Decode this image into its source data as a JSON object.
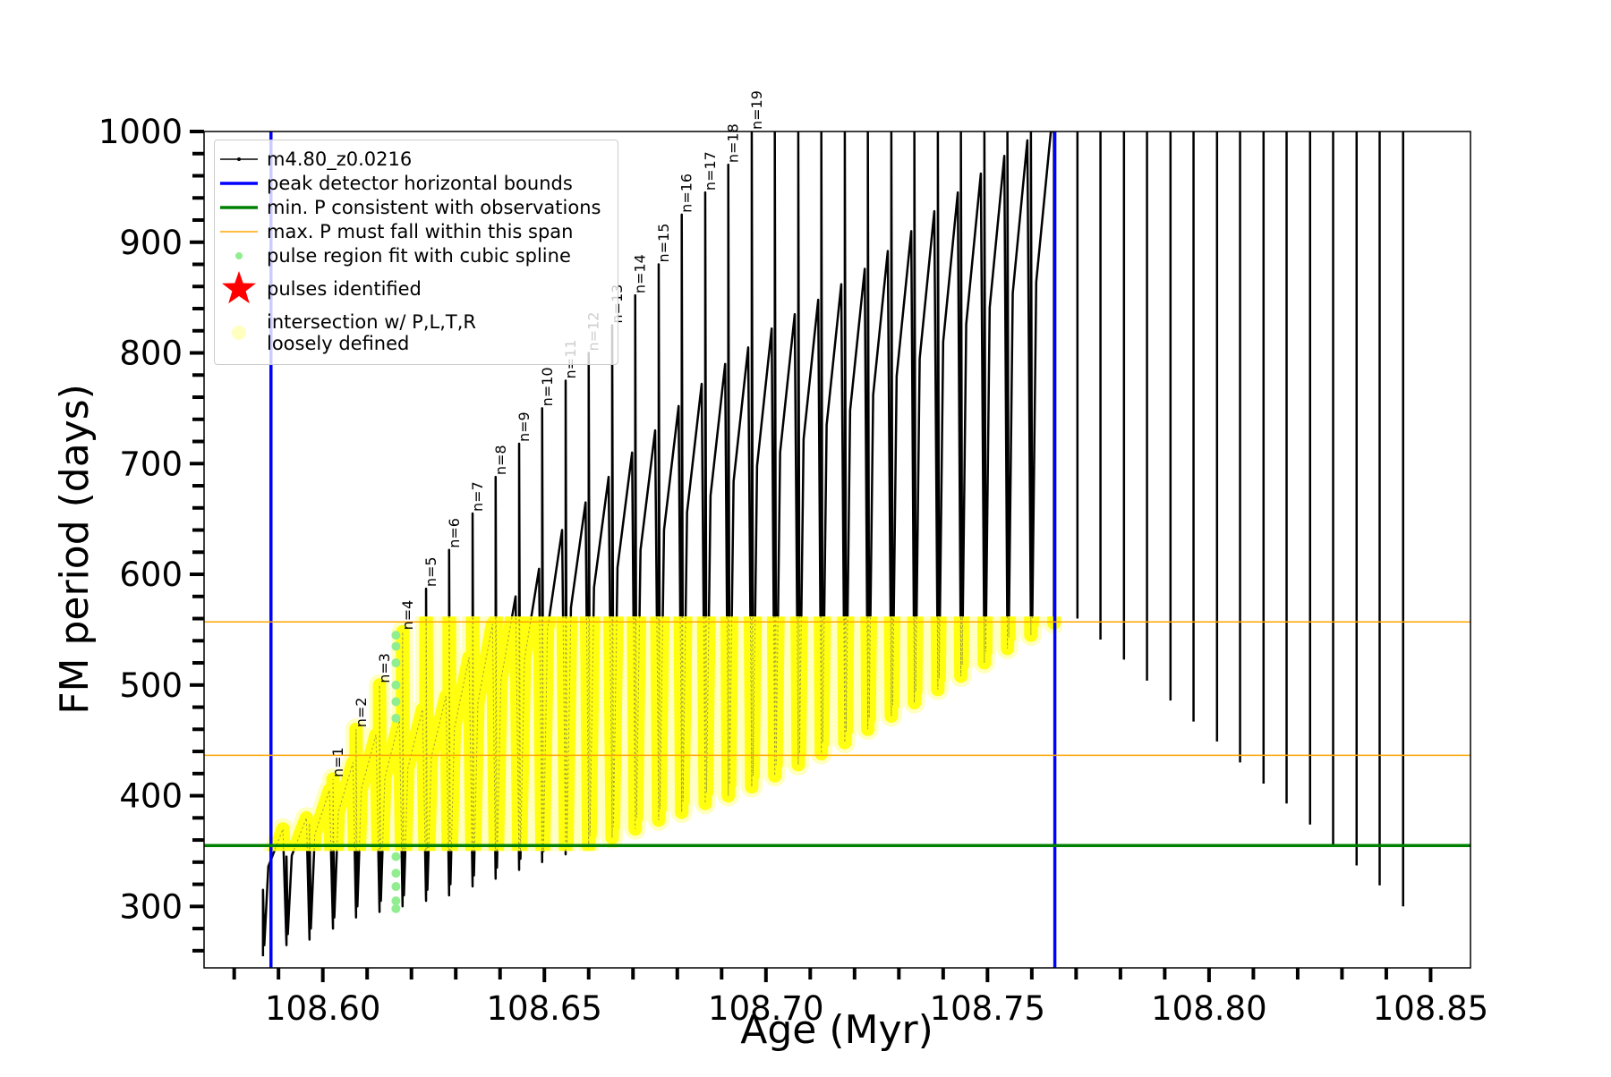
{
  "chart_data": {
    "type": "line",
    "xlabel": "Age (Myr)",
    "ylabel": "FM period (days)",
    "xlim": [
      108.5732,
      108.859
    ],
    "ylim": [
      244.5,
      1000
    ],
    "xticks": [
      {
        "value": 108.6,
        "label": "108.60"
      },
      108.65,
      {
        "value": 108.7,
        "label": "108.70"
      },
      108.75,
      {
        "value": 108.8,
        "label": "108.80"
      },
      108.85
    ],
    "xticks_minor": [
      108.58,
      108.59,
      108.61,
      108.62,
      108.63,
      108.64,
      108.66,
      108.67,
      108.68,
      108.69,
      108.71,
      108.72,
      108.73,
      108.74,
      108.76,
      108.77,
      108.78,
      108.79,
      108.81,
      108.82,
      108.83,
      108.84
    ],
    "yticks": [
      300,
      400,
      500,
      600,
      700,
      800,
      900,
      1000
    ],
    "yticks_minor": [
      260,
      280,
      320,
      340,
      360,
      380,
      420,
      440,
      460,
      480,
      520,
      540,
      560,
      580,
      620,
      640,
      660,
      680,
      720,
      740,
      760,
      780,
      820,
      840,
      860,
      880,
      920,
      940,
      960,
      980
    ],
    "legend": "upper left",
    "series": [
      {
        "name": "m4.80_z0.0216",
        "color": "#000000",
        "marker": "line",
        "x": [
          108.5865,
          108.5865,
          108.5868,
          108.5877,
          108.591,
          108.5918,
          108.5918,
          108.5921,
          108.593,
          108.5963,
          108.597,
          108.597,
          108.5973,
          108.5982,
          108.6015,
          108.6023,
          108.6023,
          108.6026,
          108.6035,
          108.6068,
          108.6075,
          108.6075,
          108.6078,
          108.6087,
          108.612,
          108.6128,
          108.6128,
          108.6131,
          108.614,
          108.6173,
          108.618,
          108.618,
          108.6183,
          108.6192,
          108.6225,
          108.6233,
          108.6233,
          108.6236,
          108.6245,
          108.6278,
          108.6285,
          108.6285,
          108.6288,
          108.6297,
          108.633,
          108.6338,
          108.6338,
          108.6341,
          108.635,
          108.6383,
          108.639,
          108.639,
          108.6393,
          108.6402,
          108.6435,
          108.6443,
          108.6443,
          108.6446,
          108.6455,
          108.6488,
          108.6495,
          108.6495,
          108.6498,
          108.6507,
          108.654,
          108.6548,
          108.6548,
          108.6551,
          108.656,
          108.6593,
          108.66,
          108.66,
          108.6603,
          108.6612,
          108.6645,
          108.6653,
          108.6653,
          108.6656,
          108.6665,
          108.6698,
          108.6705,
          108.6705,
          108.6708,
          108.6717,
          108.675,
          108.6758,
          108.6758,
          108.6761,
          108.677,
          108.6803,
          108.681,
          108.681,
          108.6813,
          108.6822,
          108.6855,
          108.6863,
          108.6863,
          108.6866,
          108.6875,
          108.6908,
          108.6915,
          108.6915,
          108.6918,
          108.6927,
          108.696,
          108.6968,
          108.6968,
          108.6971,
          108.698,
          108.7013,
          108.702,
          108.702,
          108.7023,
          108.7032,
          108.7065,
          108.7073,
          108.7073,
          108.7076,
          108.7085,
          108.7118,
          108.7125,
          108.7125,
          108.7128,
          108.7137,
          108.717,
          108.7178,
          108.7178,
          108.7181,
          108.719,
          108.7223,
          108.723,
          108.723,
          108.7233,
          108.7242,
          108.7275,
          108.7283,
          108.7283,
          108.7286,
          108.7295,
          108.7328,
          108.7335,
          108.7335,
          108.7338,
          108.7347,
          108.738,
          108.7388,
          108.7388,
          108.7391,
          108.74,
          108.7433,
          108.744,
          108.744,
          108.7443,
          108.7452,
          108.7485,
          108.7493,
          108.7493,
          108.7496,
          108.7505,
          108.7538,
          108.7545,
          108.7545,
          108.7548,
          108.7557,
          108.759,
          108.7598,
          108.7598,
          108.7601,
          108.761,
          108.7643,
          108.765,
          108.765,
          null,
          108.7703,
          108.7703,
          null,
          108.7755,
          108.7755,
          null,
          108.7808,
          108.7808,
          null,
          108.786,
          108.786,
          null,
          108.7913,
          108.7913,
          null,
          108.7965,
          108.7965,
          null,
          108.8018,
          108.8018,
          null,
          108.807,
          108.807,
          null,
          108.8123,
          108.8123,
          null,
          108.8175,
          108.8175,
          null,
          108.8228,
          108.8228,
          null,
          108.828,
          108.828,
          null,
          108.8333,
          108.8333,
          null,
          108.8385,
          108.8385,
          null,
          108.8438,
          108.8438
        ],
        "values": [
          255,
          315,
          265,
          336,
          370,
          265,
          345,
          275,
          346,
          380,
          270,
          375,
          280,
          365,
          405,
          280,
          415,
          290,
          385,
          430,
          290,
          460,
          300,
          406,
          455,
          295,
          500,
          305,
          416,
          468,
          300,
          548,
          310,
          425,
          478,
          305,
          587,
          315,
          435,
          490,
          310,
          622,
          320,
          461,
          525,
          318,
          655,
          328,
          484,
          555,
          325,
          688,
          335,
          504,
          580,
          333,
          718,
          343,
          523,
          605,
          340,
          750,
          350,
          550,
          640,
          347,
          775,
          357,
          570,
          665,
          354,
          800,
          364,
          588,
          688,
          362,
          825,
          372,
          606,
          710,
          370,
          852,
          380,
          622,
          730,
          378,
          880,
          388,
          640,
          752,
          385,
          925,
          395,
          656,
          772,
          393,
          945,
          403,
          671,
          790,
          400,
          970,
          410,
          684,
          805,
          408,
          1000,
          418,
          698,
          822,
          418,
          1000,
          428,
          710,
          835,
          428,
          1000,
          438,
          722,
          848,
          438,
          1000,
          448,
          735,
          862,
          448,
          1000,
          458,
          748,
          876,
          460,
          1000,
          470,
          762,
          892,
          472,
          1000,
          482,
          779,
          910,
          484,
          1000,
          494,
          795,
          928,
          496,
          1000,
          506,
          810,
          945,
          508,
          1000,
          518,
          826,
          962,
          520,
          1000,
          530,
          841,
          978,
          533,
          1000,
          543,
          854,
          992,
          545,
          1000,
          555,
          864,
          1000,
          1000,
          556,
          null,
          1000,
          560,
          null,
          1000,
          541,
          null,
          1000,
          523,
          null,
          1000,
          504,
          null,
          1000,
          486,
          null,
          1000,
          467,
          null,
          1000,
          449,
          null,
          1000,
          430,
          null,
          1000,
          411,
          null,
          1000,
          393,
          null,
          1000,
          374,
          null,
          1000,
          356,
          null,
          1000,
          337,
          null,
          1000,
          319,
          null,
          1000,
          300
        ]
      },
      {
        "name": "pulse region fit with cubic spline",
        "color": "#90ee90",
        "marker": "dot",
        "x": [
          108.6165,
          108.6165,
          108.6165,
          108.6165,
          108.6165,
          108.6165,
          108.6165,
          108.6165,
          108.6165,
          108.6165,
          108.6165
        ],
        "values": [
          545,
          535,
          520,
          500,
          485,
          470,
          345,
          330,
          318,
          305,
          298
        ]
      },
      {
        "name": "pulses identified",
        "color": "#ff0000",
        "marker": "star",
        "x": [],
        "values": []
      },
      {
        "name": "intersection w/ P,L,T,R\nloosely defined",
        "color": "#ffff00",
        "marker": "halo",
        "marker_color": "#ffffc0"
      }
    ],
    "reference_lines": [
      {
        "name": "peak detector horizontal bounds",
        "color": "#0000ff",
        "orientation": "vertical",
        "values": [
          108.5883,
          108.7652
        ]
      },
      {
        "name": "min. P consistent with observations",
        "color": "#008000",
        "orientation": "horizontal",
        "values": [
          355
        ]
      },
      {
        "name": "max. P must fall within this span",
        "color": "#ffa500",
        "orientation": "horizontal",
        "values": [
          436.5,
          557
        ]
      }
    ],
    "annotations": [
      "n=1",
      "n=2",
      "n=3",
      "n=4",
      "n=5",
      "n=6",
      "n=7",
      "n=8",
      "n=9",
      "n=10",
      "n=11",
      "n=12",
      "n=13",
      "n=14",
      "n=15",
      "n=16",
      "n=17",
      "n=18",
      "n=19"
    ]
  }
}
